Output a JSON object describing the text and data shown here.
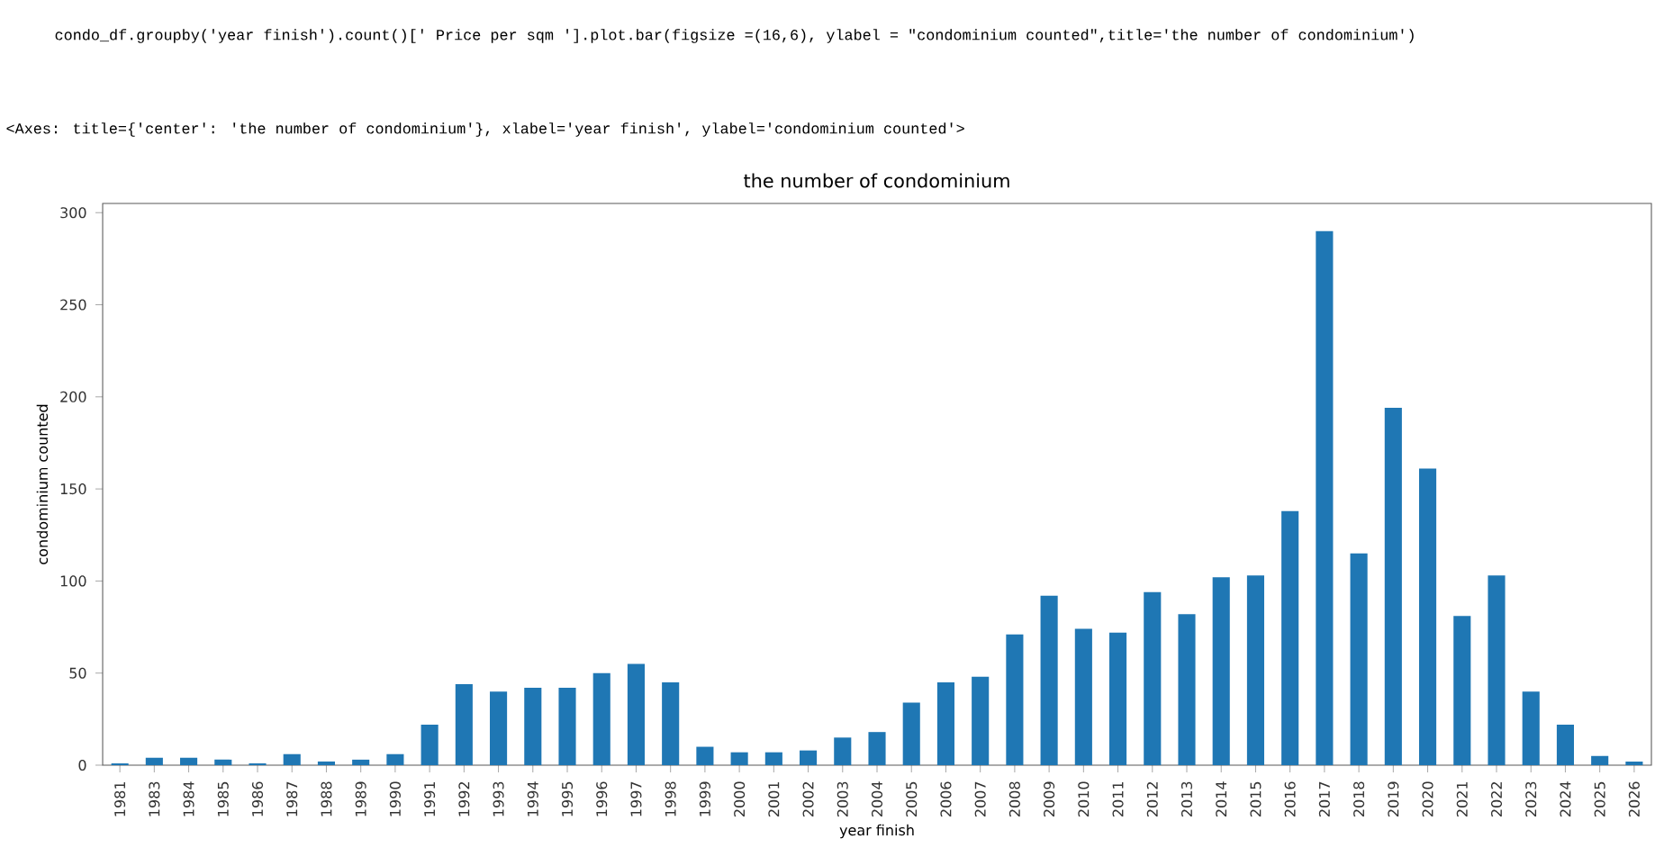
{
  "chart_data": {
    "type": "bar",
    "title": "the number of condominium",
    "xlabel": "year finish",
    "ylabel": "condominium counted",
    "categories": [
      "1981",
      "1983",
      "1984",
      "1985",
      "1986",
      "1987",
      "1988",
      "1989",
      "1990",
      "1991",
      "1992",
      "1993",
      "1994",
      "1995",
      "1996",
      "1997",
      "1998",
      "1999",
      "2000",
      "2001",
      "2002",
      "2003",
      "2004",
      "2005",
      "2006",
      "2007",
      "2008",
      "2009",
      "2010",
      "2011",
      "2012",
      "2013",
      "2014",
      "2015",
      "2016",
      "2017",
      "2018",
      "2019",
      "2020",
      "2021",
      "2022",
      "2023",
      "2024",
      "2025",
      "2026"
    ],
    "values": [
      1,
      4,
      4,
      3,
      1,
      6,
      2,
      3,
      6,
      22,
      44,
      40,
      42,
      42,
      50,
      55,
      45,
      10,
      7,
      7,
      8,
      15,
      18,
      34,
      45,
      48,
      71,
      92,
      74,
      72,
      94,
      82,
      102,
      103,
      138,
      290,
      115,
      194,
      161,
      81,
      103,
      40,
      22,
      5,
      2
    ],
    "color": "#1f77b4",
    "ylim": [
      0,
      305
    ],
    "yticks": [
      0,
      50,
      100,
      150,
      200,
      250,
      300
    ],
    "grid": false,
    "annotations": [
      "condo_df.groupby('year finish').count()[' Price per sqm '].plot.bar(figsize =(16,6), ylabel = \"condominium counted\",title='the number of condominium')",
      "<Axes: title={'center': 'the number of condominium'}, xlabel='year finish', ylabel='condominium counted'>"
    ]
  }
}
